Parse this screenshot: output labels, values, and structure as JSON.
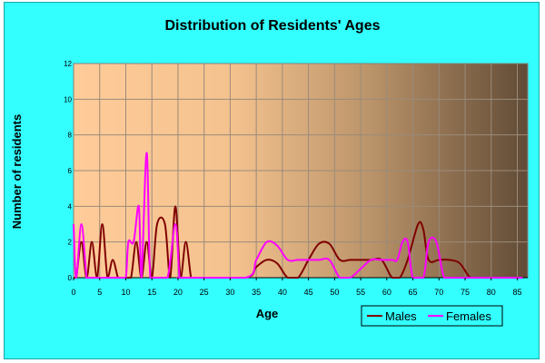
{
  "chart_data": {
    "type": "line",
    "title": "Distribution of Residents' Ages",
    "xlabel": "Age",
    "ylabel": "Number of residents",
    "xlim": [
      0,
      87
    ],
    "ylim": [
      0,
      12
    ],
    "x_ticks": [
      "0",
      "5",
      "10",
      "15",
      "20",
      "25",
      "30",
      "35",
      "40",
      "45",
      "50",
      "55",
      "60",
      "65",
      "70",
      "75",
      "80",
      "85"
    ],
    "y_ticks": [
      "0",
      "2",
      "4",
      "6",
      "8",
      "10",
      "12"
    ],
    "grid": true,
    "legend_position": "bottom-right",
    "series": [
      {
        "name": "Males",
        "color": "#800000",
        "points": [
          [
            0,
            0
          ],
          [
            0.5,
            0
          ],
          [
            1.5,
            2
          ],
          [
            2.5,
            0
          ],
          [
            3.5,
            2
          ],
          [
            4.5,
            0
          ],
          [
            5.5,
            3
          ],
          [
            6.5,
            0
          ],
          [
            7.5,
            1
          ],
          [
            8.5,
            0
          ],
          [
            9,
            0
          ],
          [
            10,
            0
          ],
          [
            11,
            0
          ],
          [
            12,
            2
          ],
          [
            13,
            0
          ],
          [
            14,
            2
          ],
          [
            15,
            0
          ],
          [
            16,
            3
          ],
          [
            17.5,
            3
          ],
          [
            18.5,
            0
          ],
          [
            19.5,
            4
          ],
          [
            20.5,
            0
          ],
          [
            21.5,
            2
          ],
          [
            22.5,
            0
          ],
          [
            23,
            0
          ],
          [
            33,
            0
          ],
          [
            35,
            0.6
          ],
          [
            37,
            1
          ],
          [
            39,
            0.8
          ],
          [
            41,
            0
          ],
          [
            43,
            0
          ],
          [
            45,
            1
          ],
          [
            47,
            1.9
          ],
          [
            49,
            1.9
          ],
          [
            51,
            1
          ],
          [
            53,
            1
          ],
          [
            55,
            1
          ],
          [
            57,
            1
          ],
          [
            59,
            1
          ],
          [
            61,
            0
          ],
          [
            62.5,
            0
          ],
          [
            64,
            1
          ],
          [
            66,
            3
          ],
          [
            67,
            2.7
          ],
          [
            68,
            1
          ],
          [
            70,
            1
          ],
          [
            72,
            1
          ],
          [
            74,
            0.8
          ],
          [
            76,
            0
          ],
          [
            78,
            0
          ],
          [
            86,
            0
          ]
        ]
      },
      {
        "name": "Females",
        "color": "#ff00ff",
        "points": [
          [
            0,
            3
          ],
          [
            0.5,
            0
          ],
          [
            1.5,
            3
          ],
          [
            2.5,
            0
          ],
          [
            3,
            0
          ],
          [
            9,
            0
          ],
          [
            10,
            0
          ],
          [
            10.5,
            2
          ],
          [
            11.5,
            2
          ],
          [
            12.5,
            4
          ],
          [
            13,
            0
          ],
          [
            14,
            7
          ],
          [
            14.7,
            0
          ],
          [
            16,
            0
          ],
          [
            18,
            0
          ],
          [
            19.5,
            3
          ],
          [
            20.3,
            0
          ],
          [
            21,
            0
          ],
          [
            33,
            0
          ],
          [
            35,
            1
          ],
          [
            37,
            2
          ],
          [
            39,
            1.8
          ],
          [
            41,
            1
          ],
          [
            43,
            1
          ],
          [
            45,
            1
          ],
          [
            47,
            1
          ],
          [
            49,
            1
          ],
          [
            51,
            0
          ],
          [
            53,
            0
          ],
          [
            55,
            0.5
          ],
          [
            57,
            1
          ],
          [
            59,
            1
          ],
          [
            61,
            1
          ],
          [
            62,
            1
          ],
          [
            63,
            2
          ],
          [
            64,
            2
          ],
          [
            65,
            0
          ],
          [
            67,
            0
          ],
          [
            68,
            2
          ],
          [
            69.5,
            2
          ],
          [
            71,
            0
          ],
          [
            73,
            0
          ],
          [
            86,
            0
          ]
        ]
      }
    ]
  }
}
